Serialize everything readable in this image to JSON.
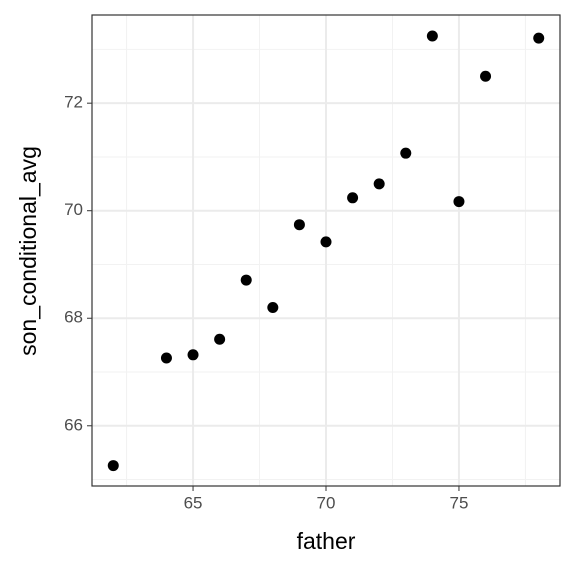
{
  "chart_data": {
    "type": "scatter",
    "x_label": "father",
    "y_label": "son_conditional_avg",
    "x": [
      62,
      64,
      65,
      66,
      67,
      68,
      69,
      70,
      71,
      72,
      73,
      74,
      75,
      76,
      78
    ],
    "values": [
      65.26,
      67.26,
      67.32,
      67.61,
      68.71,
      68.2,
      69.74,
      69.42,
      70.24,
      70.5,
      71.07,
      73.25,
      70.17,
      72.5,
      73.21
    ],
    "color": "#000000",
    "xlim": [
      61.2,
      78.8
    ],
    "xticks": [
      65,
      70,
      75
    ],
    "x_minor_ticks": [
      62.5,
      67.5,
      72.5,
      77.5
    ],
    "ylim": [
      64.88,
      73.64
    ],
    "yticks": [
      66,
      68,
      70,
      72
    ],
    "y_minor_ticks": [
      65,
      67,
      69,
      71,
      73
    ],
    "grid": true
  }
}
